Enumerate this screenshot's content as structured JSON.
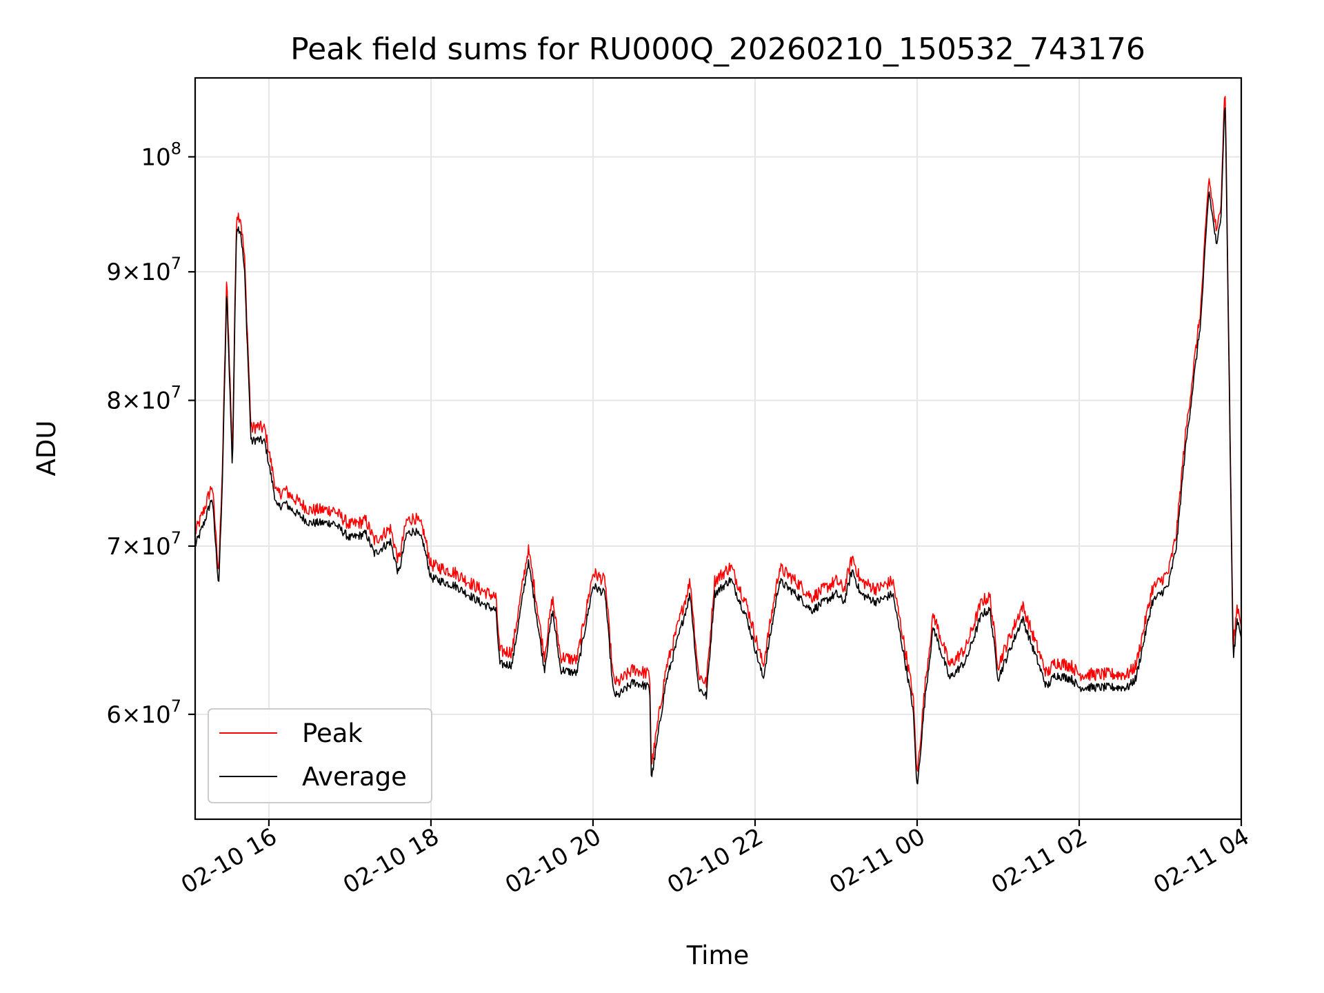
{
  "chart_data": {
    "type": "line",
    "title": "Peak field sums for RU000Q_20260210_150532_743176",
    "xlabel": "Time",
    "ylabel": "ADU",
    "y_scale": "log",
    "x_unit": "hours since 02-10 00:00",
    "xlim": [
      15.09,
      28.0
    ],
    "ylim": [
      54500000,
      107500000
    ],
    "grid": true,
    "legend_position": "lower-left",
    "x_ticks": [
      {
        "value": 16,
        "label": "02-10 16"
      },
      {
        "value": 18,
        "label": "02-10 18"
      },
      {
        "value": 20,
        "label": "02-10 20"
      },
      {
        "value": 22,
        "label": "02-10 22"
      },
      {
        "value": 24,
        "label": "02-11 00"
      },
      {
        "value": 26,
        "label": "02-11 02"
      },
      {
        "value": 28,
        "label": "02-11 04"
      }
    ],
    "y_ticks": [
      {
        "value": 60000000,
        "mantissa": "6",
        "exponent": "7",
        "label": "6×10^7"
      },
      {
        "value": 70000000,
        "mantissa": "7",
        "exponent": "7",
        "label": "7×10^7"
      },
      {
        "value": 80000000,
        "mantissa": "8",
        "exponent": "7",
        "label": "8×10^7"
      },
      {
        "value": 90000000,
        "mantissa": "9",
        "exponent": "7",
        "label": "9×10^7"
      },
      {
        "value": 100000000,
        "mantissa": "",
        "exponent": "8",
        "label": "10^8"
      }
    ],
    "series": [
      {
        "name": "Peak",
        "color": "#ff0000",
        "offset_ratio": 1.012,
        "noise_amplitude": 0.006
      },
      {
        "name": "Average",
        "color": "#000000",
        "offset_ratio": 1.0,
        "noise_amplitude": 0.004
      }
    ],
    "x": [
      15.09,
      15.2,
      15.3,
      15.38,
      15.42,
      15.48,
      15.55,
      15.6,
      15.65,
      15.7,
      15.78,
      15.85,
      15.95,
      16.1,
      16.2,
      16.3,
      16.5,
      16.8,
      17.0,
      17.2,
      17.3,
      17.5,
      17.6,
      17.7,
      17.8,
      17.9,
      18.0,
      18.3,
      18.6,
      18.8,
      18.85,
      19.0,
      19.2,
      19.25,
      19.4,
      19.5,
      19.6,
      19.8,
      20.0,
      20.15,
      20.25,
      20.3,
      20.5,
      20.7,
      20.72,
      20.9,
      21.2,
      21.3,
      21.4,
      21.5,
      21.7,
      21.9,
      22.1,
      22.3,
      22.5,
      22.7,
      23.0,
      23.1,
      23.2,
      23.3,
      23.5,
      23.7,
      23.85,
      23.95,
      24.0,
      24.1,
      24.2,
      24.4,
      24.6,
      24.8,
      24.9,
      25.0,
      25.3,
      25.6,
      25.7,
      25.9,
      26.0,
      26.3,
      26.6,
      26.7,
      26.9,
      27.1,
      27.2,
      27.3,
      27.5,
      27.6,
      27.7,
      27.75,
      27.8,
      27.85,
      27.9,
      27.95,
      28.0
    ],
    "values": [
      70000000,
      71500000,
      73200000,
      67500000,
      73000000,
      88500000,
      75000000,
      93800000,
      93500000,
      90000000,
      77000000,
      77200000,
      77000000,
      72500000,
      72800000,
      72300000,
      71500000,
      71500000,
      70500000,
      70800000,
      69500000,
      70300000,
      68200000,
      70800000,
      71000000,
      70300000,
      68000000,
      67500000,
      66500000,
      66000000,
      62800000,
      62800000,
      69000000,
      67500000,
      62500000,
      66000000,
      62500000,
      62300000,
      67500000,
      67000000,
      61200000,
      61000000,
      61800000,
      61500000,
      56500000,
      61800000,
      67000000,
      61500000,
      61000000,
      67000000,
      67900000,
      65500000,
      62000000,
      67800000,
      67000000,
      66000000,
      67000000,
      66500000,
      68500000,
      67000000,
      66500000,
      67000000,
      63000000,
      60300000,
      56000000,
      61000000,
      65000000,
      62000000,
      63000000,
      65800000,
      66000000,
      62000000,
      65500000,
      61500000,
      62200000,
      62000000,
      61500000,
      61500000,
      61500000,
      62000000,
      66500000,
      67500000,
      70000000,
      76000000,
      86000000,
      97000000,
      92000000,
      95000000,
      106000000,
      82000000,
      63000000,
      65500000,
      64500000
    ]
  }
}
